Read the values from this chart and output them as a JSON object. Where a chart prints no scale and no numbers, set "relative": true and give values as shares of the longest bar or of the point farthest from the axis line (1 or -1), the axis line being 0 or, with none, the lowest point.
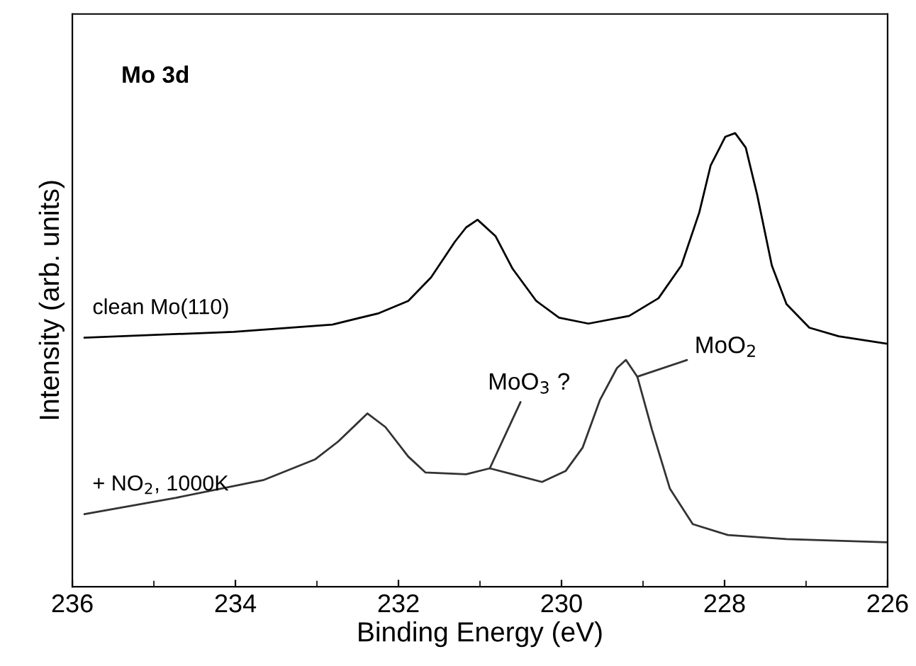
{
  "chart_data": {
    "type": "line",
    "title": "Mo 3d",
    "xlabel": "Binding Energy (eV)",
    "ylabel": "Intensity (arb. units)",
    "relative": true,
    "xlim": [
      236,
      226
    ],
    "xticks": [
      236,
      234,
      232,
      230,
      228,
      226
    ],
    "series": [
      {
        "name": "clean Mo(110)",
        "color": "#000000",
        "x": [
          235.85,
          234.02,
          232.81,
          232.24,
          231.88,
          231.6,
          231.31,
          231.17,
          231.03,
          230.81,
          230.6,
          230.31,
          230.03,
          229.67,
          229.17,
          228.81,
          228.53,
          228.31,
          228.17,
          227.99,
          227.87,
          227.74,
          227.6,
          227.42,
          227.24,
          226.96,
          226.6,
          226.02
        ],
        "values": [
          0.549,
          0.562,
          0.578,
          0.603,
          0.63,
          0.682,
          0.76,
          0.792,
          0.809,
          0.773,
          0.701,
          0.63,
          0.593,
          0.58,
          0.597,
          0.636,
          0.708,
          0.825,
          0.929,
          0.992,
          1.0,
          0.968,
          0.864,
          0.708,
          0.623,
          0.571,
          0.552,
          0.536
        ]
      },
      {
        "name": "+ NO$_{2}$, 1000K",
        "color": "#333333",
        "x": [
          235.85,
          234.73,
          233.66,
          233.02,
          232.74,
          232.38,
          232.16,
          231.88,
          231.67,
          231.17,
          230.88,
          230.6,
          230.24,
          229.95,
          229.74,
          229.53,
          229.32,
          229.21,
          229.07,
          228.89,
          228.67,
          228.39,
          227.96,
          227.24,
          226.02
        ],
        "values": [
          0.16,
          0.196,
          0.235,
          0.281,
          0.32,
          0.382,
          0.352,
          0.287,
          0.252,
          0.248,
          0.261,
          0.248,
          0.231,
          0.255,
          0.307,
          0.411,
          0.482,
          0.5,
          0.463,
          0.346,
          0.216,
          0.138,
          0.114,
          0.105,
          0.098
        ]
      }
    ],
    "annotations": [
      {
        "text": "MoO$_{3}$ ?",
        "x": 230.88,
        "y": 0.261
      },
      {
        "text": "MoO$_{2}$",
        "x": 229.07,
        "y": 0.463
      }
    ],
    "grid": false,
    "legend": false,
    "marker": "none",
    "line_style": "solid"
  }
}
